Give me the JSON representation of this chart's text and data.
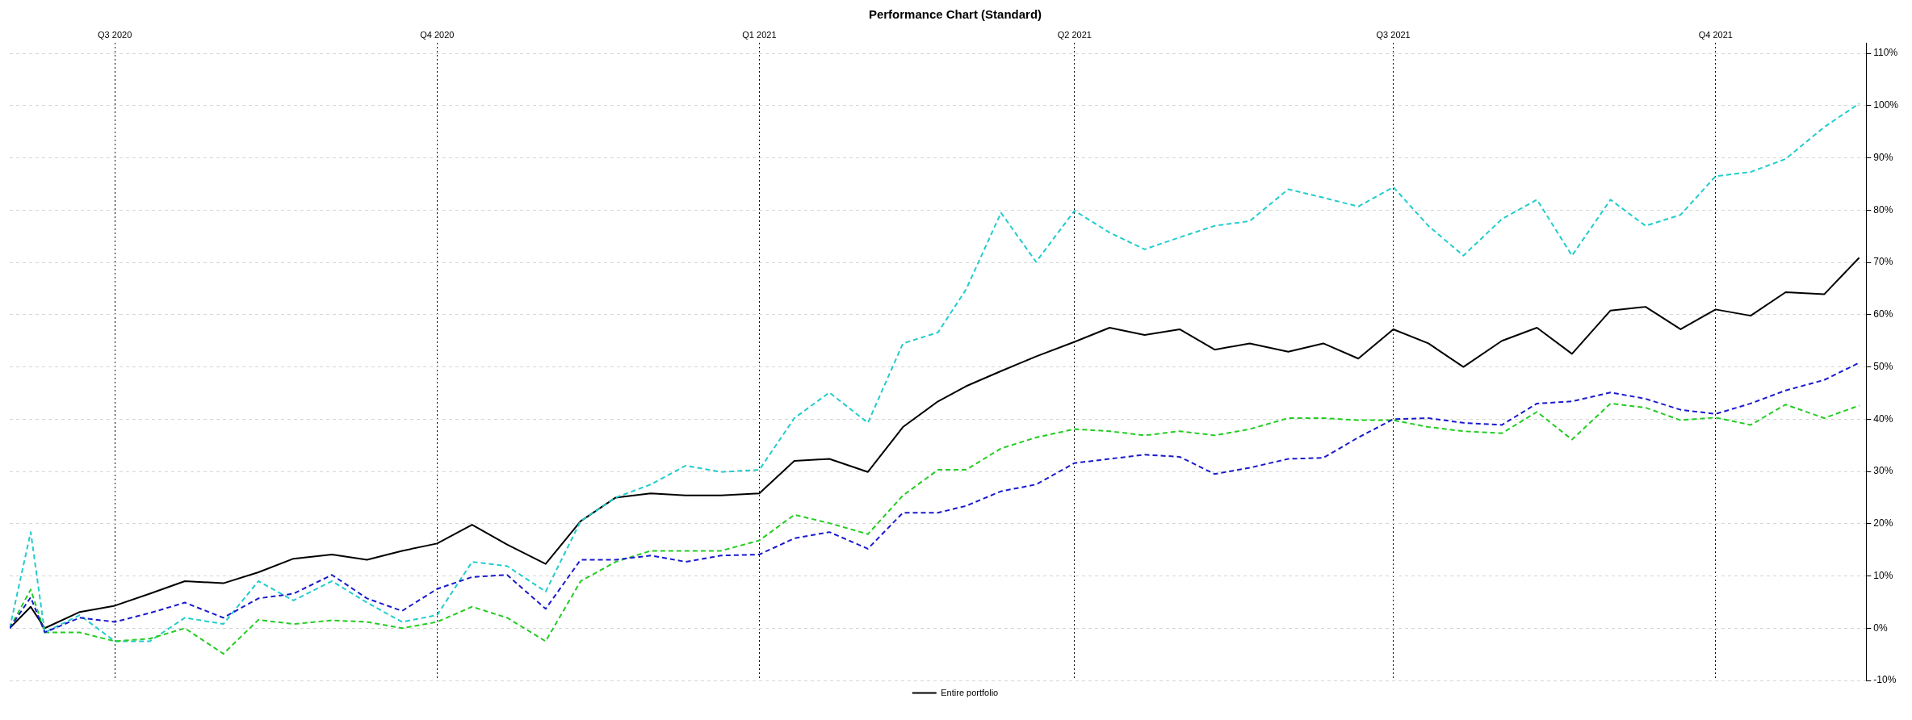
{
  "chart_data": {
    "type": "line",
    "title": "Performance Chart (Standard)",
    "x": [
      "2020-06-01",
      "2020-06-07",
      "2020-06-11",
      "2020-06-21",
      "2020-07-01",
      "2020-07-11",
      "2020-07-21",
      "2020-08-01",
      "2020-08-11",
      "2020-08-21",
      "2020-09-01",
      "2020-09-11",
      "2020-09-21",
      "2020-10-01",
      "2020-10-11",
      "2020-10-21",
      "2020-11-01",
      "2020-11-11",
      "2020-11-21",
      "2020-12-01",
      "2020-12-11",
      "2020-12-21",
      "2021-01-01",
      "2021-01-11",
      "2021-01-21",
      "2021-02-01",
      "2021-02-11",
      "2021-02-21",
      "2021-03-01",
      "2021-03-11",
      "2021-03-21",
      "2021-04-01",
      "2021-04-11",
      "2021-04-21",
      "2021-05-01",
      "2021-05-11",
      "2021-05-21",
      "2021-06-01",
      "2021-06-11",
      "2021-06-21",
      "2021-07-01",
      "2021-07-11",
      "2021-07-21",
      "2021-08-01",
      "2021-08-11",
      "2021-08-21",
      "2021-09-01",
      "2021-09-11",
      "2021-09-21",
      "2021-10-01",
      "2021-10-11",
      "2021-10-21",
      "2021-11-01",
      "2021-11-11"
    ],
    "series": [
      {
        "color": "#1a1acd",
        "line_style": "dashed",
        "values": [
          0,
          5.9,
          -0.8,
          2,
          1.2,
          2.9,
          4.9,
          2,
          5.7,
          6.6,
          10.2,
          5.7,
          3.3,
          7.5,
          9.8,
          10.2,
          3.7,
          13.1,
          13.1,
          13.9,
          12.7,
          13.9,
          14.1,
          17.2,
          18.4,
          15.2,
          22.1,
          22.1,
          23.4,
          26.2,
          27.5,
          31.6,
          32.4,
          33.2,
          32.8,
          29.5,
          30.7,
          32.4,
          32.6,
          36.5,
          40,
          40.2,
          39.3,
          38.9,
          43,
          43.4,
          45.1,
          43.9,
          41.8,
          41,
          43,
          45.5,
          47.5,
          50.8
        ]
      },
      {
        "color": "#22cc22",
        "line_style": "dashed",
        "values": [
          0,
          7.4,
          -0.8,
          -0.8,
          -2.5,
          -2,
          0,
          -4.9,
          1.6,
          0.8,
          1.5,
          1.2,
          0,
          1.2,
          4.1,
          2,
          -2.5,
          9,
          12.7,
          14.8,
          14.8,
          14.8,
          16.8,
          21.7,
          20.1,
          18,
          25.4,
          30.3,
          30.3,
          34.4,
          36.5,
          38.1,
          37.7,
          36.9,
          37.7,
          36.9,
          38.1,
          40.2,
          40.2,
          39.8,
          39.8,
          38.5,
          37.7,
          37.3,
          41.4,
          36.1,
          43,
          42.2,
          39.8,
          40.3,
          38.9,
          42.8,
          40.2,
          42.6
        ]
      },
      {
        "color": "#22cccc",
        "line_style": "dashed",
        "values": [
          0,
          18.4,
          -0.8,
          2.5,
          -2.5,
          -2.5,
          2,
          0.8,
          9,
          5.3,
          9,
          4.9,
          1.2,
          2.5,
          12.7,
          11.9,
          7,
          20.5,
          25,
          27.5,
          31.1,
          29.9,
          30.3,
          40.2,
          45.1,
          39.3,
          54.5,
          56.6,
          64.8,
          79.5,
          70.1,
          79.9,
          75.7,
          72.5,
          74.8,
          77,
          77.9,
          84,
          82.4,
          80.7,
          84.4,
          77,
          71.3,
          78.3,
          82,
          71.3,
          82,
          77,
          79.1,
          86.5,
          87.3,
          89.8,
          95.9,
          100.4
        ]
      },
      {
        "name": "Entire portfolio",
        "color": "#000000",
        "line_style": "solid",
        "values": [
          0,
          4.1,
          0,
          3.1,
          4.3,
          6.6,
          9,
          8.6,
          10.7,
          13.3,
          14.1,
          13.1,
          14.8,
          16.2,
          19.8,
          16,
          12.3,
          20.5,
          25,
          25.8,
          25.4,
          25.4,
          25.8,
          32,
          32.4,
          29.9,
          38.5,
          43.4,
          46.3,
          49.2,
          52,
          54.8,
          57.5,
          56.1,
          57.2,
          53.3,
          54.5,
          52.9,
          54.5,
          51.6,
          57.2,
          54.5,
          50,
          55,
          57.5,
          52.5,
          60.8,
          61.5,
          57.2,
          61,
          59.8,
          64.3,
          63.9,
          70.9
        ]
      }
    ],
    "xlim": [
      "2020-06-01",
      "2021-11-13"
    ],
    "ylim": [
      -10,
      112
    ],
    "yticks": [
      {
        "value": -10,
        "label": "-10%"
      },
      {
        "value": 0,
        "label": "0%"
      },
      {
        "value": 10,
        "label": "10%"
      },
      {
        "value": 20,
        "label": "20%"
      },
      {
        "value": 30,
        "label": "30%"
      },
      {
        "value": 40,
        "label": "40%"
      },
      {
        "value": 50,
        "label": "50%"
      },
      {
        "value": 60,
        "label": "60%"
      },
      {
        "value": 70,
        "label": "70%"
      },
      {
        "value": 80,
        "label": "80%"
      },
      {
        "value": 90,
        "label": "90%"
      },
      {
        "value": 100,
        "label": "100%"
      },
      {
        "value": 110,
        "label": "110%"
      }
    ],
    "xticks": [
      {
        "value": "2020-07-01",
        "label": "Q3 2020"
      },
      {
        "value": "2020-10-01",
        "label": "Q4 2020"
      },
      {
        "value": "2021-01-01",
        "label": "Q1 2021"
      },
      {
        "value": "2021-04-01",
        "label": "Q2 2021"
      },
      {
        "value": "2021-07-01",
        "label": "Q3 2021"
      },
      {
        "value": "2021-10-01",
        "label": "Q4 2021"
      }
    ],
    "grid": true,
    "legend": "bottom",
    "marker": "none"
  }
}
